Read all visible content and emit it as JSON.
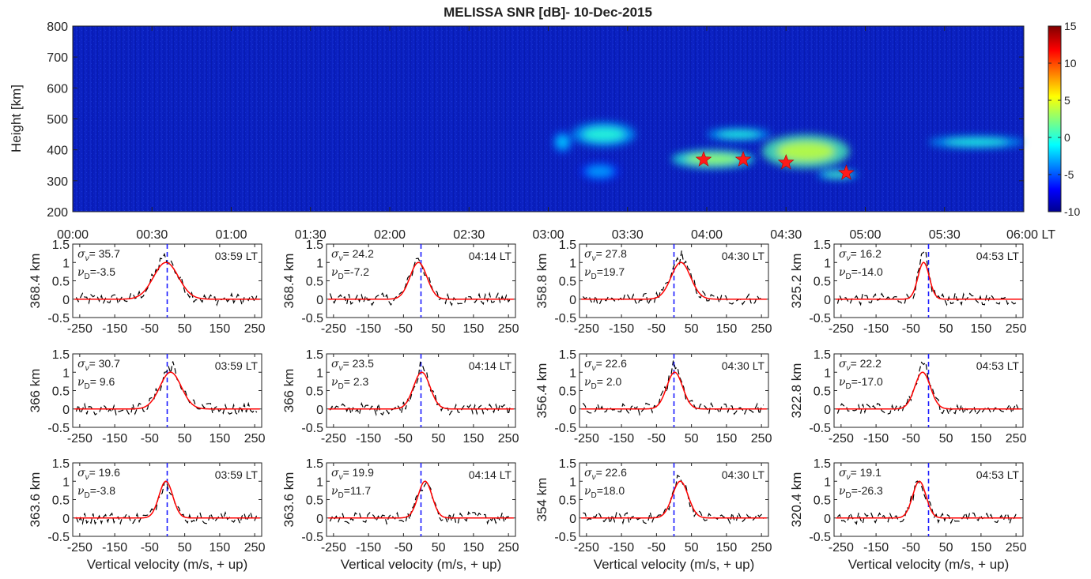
{
  "chart_data": [
    {
      "type": "heatmap",
      "title": "MELISSA SNR [dB]- 10-Dec-2015",
      "ylabel": "Height [km]",
      "xlabel": "",
      "xlim": [
        0,
        6
      ],
      "x_ticks": [
        "00:00",
        "00:30",
        "01:00",
        "01:30",
        "02:00",
        "02:30",
        "03:00",
        "03:30",
        "04:00",
        "04:30",
        "05:00",
        "05:30",
        "06:00 LT"
      ],
      "ylim": [
        200,
        800
      ],
      "y_ticks": [
        200,
        300,
        400,
        500,
        600,
        700,
        800
      ],
      "colorbar": {
        "min": -10,
        "max": 15,
        "ticks": [
          -10,
          -5,
          0,
          5,
          10,
          15
        ]
      },
      "background_color": "#0a1fbf",
      "echo_regions": [
        {
          "t_start": 3.03,
          "t_end": 3.15,
          "h_low": 390,
          "h_high": 460,
          "snr": -2
        },
        {
          "t_start": 3.15,
          "t_end": 3.55,
          "h_low": 410,
          "h_high": 490,
          "snr": 0
        },
        {
          "t_start": 3.2,
          "t_end": 3.45,
          "h_low": 300,
          "h_high": 360,
          "snr": -3
        },
        {
          "t_start": 3.78,
          "t_end": 4.3,
          "h_low": 340,
          "h_high": 400,
          "snr": 3
        },
        {
          "t_start": 4.0,
          "t_end": 4.4,
          "h_low": 430,
          "h_high": 470,
          "snr": 0
        },
        {
          "t_start": 4.35,
          "t_end": 4.9,
          "h_low": 340,
          "h_high": 450,
          "snr": 4
        },
        {
          "t_start": 4.7,
          "t_end": 4.95,
          "h_low": 305,
          "h_high": 335,
          "snr": 1
        },
        {
          "t_start": 5.4,
          "t_end": 6.0,
          "h_low": 405,
          "h_high": 445,
          "snr": 0
        }
      ],
      "markers": [
        {
          "time": 3.98,
          "height": 368.4
        },
        {
          "time": 4.23,
          "height": 368.4
        },
        {
          "time": 4.5,
          "height": 358.8
        },
        {
          "time": 4.88,
          "height": 325.2
        }
      ],
      "marker_color": "#ff1a1a"
    },
    {
      "type": "line",
      "panel_grid": "3x4",
      "xlabel": "Vertical velocity (m/s, + up)",
      "xlim": [
        -270,
        270
      ],
      "x_ticks": [
        -250,
        -150,
        -50,
        50,
        150,
        250
      ],
      "ylim": [
        -0.5,
        1.5
      ],
      "y_ticks": [
        -0.5,
        0,
        0.5,
        1,
        1.5
      ],
      "fit_color": "#ff0000",
      "data_color": "#000000",
      "zero_line_color": "#1a1aff",
      "panels": [
        {
          "height_label": "368.4 km",
          "sigma": "35.7",
          "vd": "-3.5",
          "time": "03:59 LT",
          "fit_center": -3.5,
          "fit_width": 35.7
        },
        {
          "height_label": "368.4 km",
          "sigma": "24.2",
          "vd": "-7.2",
          "time": "04:14 LT",
          "fit_center": -7.2,
          "fit_width": 24.2
        },
        {
          "height_label": "358.8 km",
          "sigma": "27.8",
          "vd": "19.7",
          "time": "04:30 LT",
          "fit_center": 19.7,
          "fit_width": 27.8
        },
        {
          "height_label": "325.2 km",
          "sigma": "16.2",
          "vd": "-14.0",
          "time": "04:53 LT",
          "fit_center": -14.0,
          "fit_width": 16.2
        },
        {
          "height_label": "366 km",
          "sigma": "30.7",
          "vd": " 9.6",
          "time": "03:59 LT",
          "fit_center": 9.6,
          "fit_width": 30.7
        },
        {
          "height_label": "366 km",
          "sigma": "23.5",
          "vd": " 2.3",
          "time": "04:14 LT",
          "fit_center": 2.3,
          "fit_width": 23.5
        },
        {
          "height_label": "356.4 km",
          "sigma": "22.6",
          "vd": " 2.0",
          "time": "04:30 LT",
          "fit_center": 2.0,
          "fit_width": 22.6
        },
        {
          "height_label": "322.8 km",
          "sigma": "22.2",
          "vd": "-17.0",
          "time": "04:53 LT",
          "fit_center": -17.0,
          "fit_width": 22.2
        },
        {
          "height_label": "363.6 km",
          "sigma": "19.6",
          "vd": "-3.8",
          "time": "03:59 LT",
          "fit_center": -3.8,
          "fit_width": 19.6
        },
        {
          "height_label": "363.6 km",
          "sigma": "19.9",
          "vd": "11.7",
          "time": "04:14 LT",
          "fit_center": 11.7,
          "fit_width": 19.9
        },
        {
          "height_label": "354 km",
          "sigma": "22.6",
          "vd": "18.0",
          "time": "04:30 LT",
          "fit_center": 18.0,
          "fit_width": 22.6
        },
        {
          "height_label": "320.4 km",
          "sigma": "19.1",
          "vd": "-26.3",
          "time": "04:53 LT",
          "fit_center": -26.3,
          "fit_width": 19.1
        }
      ]
    }
  ]
}
